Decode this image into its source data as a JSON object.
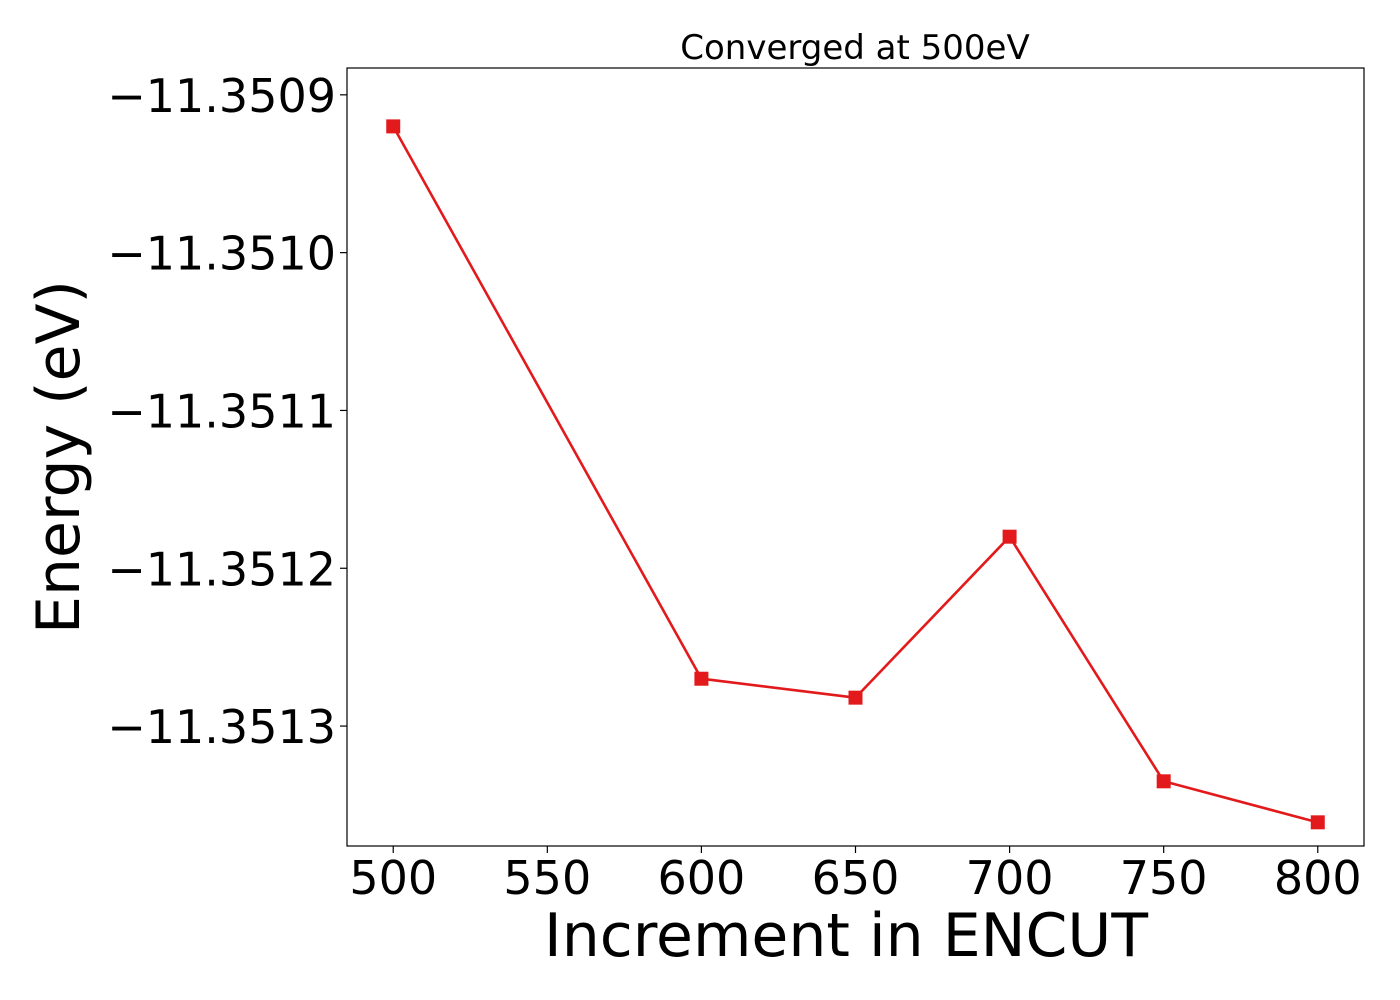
{
  "chart_data": {
    "type": "line",
    "title": "Converged at 500eV",
    "xlabel": "Increment in ENCUT",
    "ylabel": "Energy (eV)",
    "x": [
      500,
      600,
      650,
      700,
      750,
      800
    ],
    "series": [
      {
        "values": [
          -11.35092,
          -11.35127,
          -11.351282,
          -11.35118,
          -11.351335,
          -11.351361
        ],
        "color": "#e31a1c",
        "marker": "square"
      }
    ],
    "xlim": [
      485,
      815
    ],
    "ylim": [
      -11.351376,
      -11.350883
    ],
    "xticks": [
      500,
      550,
      600,
      650,
      700,
      750,
      800
    ],
    "xtick_labels": [
      "500",
      "550",
      "600",
      "650",
      "700",
      "750",
      "800"
    ],
    "yticks": [
      -11.3509,
      -11.351,
      -11.3511,
      -11.3512,
      -11.3513
    ],
    "ytick_labels": [
      "−11.3509",
      "−11.3510",
      "−11.3511",
      "−11.3512",
      "−11.3513"
    ],
    "grid": false,
    "legend": "none"
  }
}
